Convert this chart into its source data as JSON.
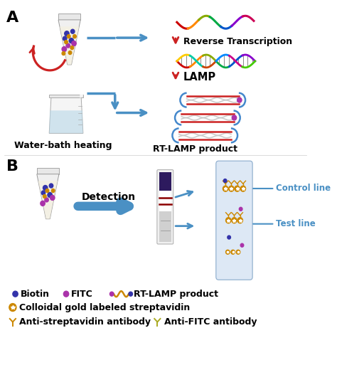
{
  "bg_color": "#ffffff",
  "panel_A_label": "A",
  "panel_B_label": "B",
  "label_fontsize": 16,
  "text_fontsize": 8.5,
  "water_bath_label": "Water-bath heating",
  "rt_lamp_label": "RT-LAMP product",
  "reverse_transcription": "Reverse Transcription",
  "lamp_label": "LAMP",
  "detection_label": "Detection",
  "control_line": "Control line",
  "test_line": "Test line",
  "arrow_blue": "#4a90c4",
  "arrow_red": "#cc2222",
  "biotin_color": "#3333aa",
  "fitc_color": "#aa33aa",
  "gold_color": "#cc8800",
  "gold_dark": "#8B4513",
  "lamp_loop_color": "#4488cc",
  "lamp_strand_color": "#cc2222",
  "strip_dark": "#2d1a5e",
  "strip_bg": "#dde8f5",
  "legend_biotin_color": "#3333aa",
  "legend_fitc_color": "#aa33aa"
}
